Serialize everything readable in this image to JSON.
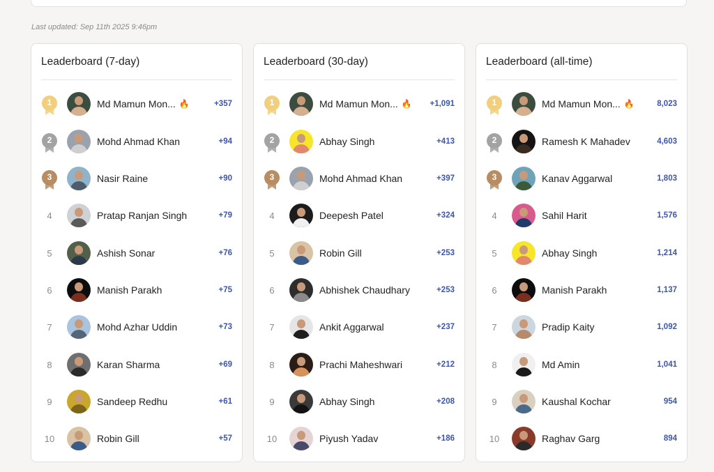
{
  "last_updated": "Last updated: Sep 11th 2025 9:46pm",
  "colors": {
    "score": "#3c55b3",
    "gold": "#f1cf7c",
    "silver": "#a3a3a3",
    "bronze": "#b98c62",
    "fire": "#f05a1a"
  },
  "boards": [
    {
      "title": "Leaderboard (7-day)",
      "rows": [
        {
          "rank": "1",
          "name": "Md Mamun Mon...",
          "fire": "🔥",
          "score": "+357",
          "avatar": [
            "#3b4d3e",
            "#d6b08e"
          ]
        },
        {
          "rank": "2",
          "name": "Mohd Ahmad Khan",
          "fire": "",
          "score": "+94",
          "avatar": [
            "#9aa3ad",
            "#cfcfcf"
          ]
        },
        {
          "rank": "3",
          "name": "Nasir Raine",
          "fire": "",
          "score": "+90",
          "avatar": [
            "#8fb3c9",
            "#4d5d6b"
          ]
        },
        {
          "rank": "4",
          "name": "Pratap Ranjan Singh",
          "fire": "",
          "score": "+79",
          "avatar": [
            "#cfd2d4",
            "#5a5a5a"
          ]
        },
        {
          "rank": "5",
          "name": "Ashish Sonar",
          "fire": "",
          "score": "+76",
          "avatar": [
            "#52604b",
            "#2b3a4a"
          ]
        },
        {
          "rank": "6",
          "name": "Manish Parakh",
          "fire": "",
          "score": "+75",
          "avatar": [
            "#0d0d0d",
            "#7a2e1f"
          ]
        },
        {
          "rank": "7",
          "name": "Mohd Azhar Uddin",
          "fire": "",
          "score": "+73",
          "avatar": [
            "#a9c4de",
            "#55667a"
          ]
        },
        {
          "rank": "8",
          "name": "Karan Sharma",
          "fire": "",
          "score": "+69",
          "avatar": [
            "#6f6f6f",
            "#2a2a2a"
          ]
        },
        {
          "rank": "9",
          "name": "Sandeep Redhu",
          "fire": "",
          "score": "+61",
          "avatar": [
            "#c9a62c",
            "#7d6418"
          ]
        },
        {
          "rank": "10",
          "name": "Robin Gill",
          "fire": "",
          "score": "+57",
          "avatar": [
            "#d8c3a4",
            "#3b5b8a"
          ]
        }
      ]
    },
    {
      "title": "Leaderboard (30-day)",
      "rows": [
        {
          "rank": "1",
          "name": "Md Mamun Mon...",
          "fire": "🔥",
          "score": "+1,091",
          "avatar": [
            "#3b4d3e",
            "#d6b08e"
          ]
        },
        {
          "rank": "2",
          "name": "Abhay Singh",
          "fire": "",
          "score": "+413",
          "avatar": [
            "#f7e52a",
            "#e2896d"
          ]
        },
        {
          "rank": "3",
          "name": "Mohd Ahmad Khan",
          "fire": "",
          "score": "+397",
          "avatar": [
            "#9aa3ad",
            "#cfcfcf"
          ]
        },
        {
          "rank": "4",
          "name": "Deepesh Patel",
          "fire": "",
          "score": "+324",
          "avatar": [
            "#1c1c1c",
            "#f0f0f0"
          ]
        },
        {
          "rank": "5",
          "name": "Robin Gill",
          "fire": "",
          "score": "+253",
          "avatar": [
            "#d8c3a4",
            "#3b5b8a"
          ]
        },
        {
          "rank": "6",
          "name": "Abhishek Chaudhary",
          "fire": "",
          "score": "+253",
          "avatar": [
            "#2d2d2d",
            "#8a8a8a"
          ]
        },
        {
          "rank": "7",
          "name": "Ankit Aggarwal",
          "fire": "",
          "score": "+237",
          "avatar": [
            "#e5e5e5",
            "#1f1f1f"
          ]
        },
        {
          "rank": "8",
          "name": "Prachi Maheshwari",
          "fire": "",
          "score": "+212",
          "avatar": [
            "#2a1c16",
            "#d9915c"
          ]
        },
        {
          "rank": "9",
          "name": "Abhay Singh",
          "fire": "",
          "score": "+208",
          "avatar": [
            "#3a3a3a",
            "#121212"
          ]
        },
        {
          "rank": "10",
          "name": "Piyush Yadav",
          "fire": "",
          "score": "+186",
          "avatar": [
            "#e6d4d4",
            "#4a4a6a"
          ]
        }
      ]
    },
    {
      "title": "Leaderboard (all-time)",
      "rows": [
        {
          "rank": "1",
          "name": "Md Mamun Mon...",
          "fire": "🔥",
          "score": "8,023",
          "avatar": [
            "#3b4d3e",
            "#d6b08e"
          ]
        },
        {
          "rank": "2",
          "name": "Ramesh K Mahadev",
          "fire": "",
          "score": "4,603",
          "avatar": [
            "#141414",
            "#3a2a1f"
          ]
        },
        {
          "rank": "3",
          "name": "Kanav Aggarwal",
          "fire": "",
          "score": "1,803",
          "avatar": [
            "#6fa3b8",
            "#3b5a3a"
          ]
        },
        {
          "rank": "4",
          "name": "Sahil Harit",
          "fire": "",
          "score": "1,576",
          "avatar": [
            "#d95a8c",
            "#1f3b6a"
          ]
        },
        {
          "rank": "5",
          "name": "Abhay Singh",
          "fire": "",
          "score": "1,214",
          "avatar": [
            "#f7e52a",
            "#e2896d"
          ]
        },
        {
          "rank": "6",
          "name": "Manish Parakh",
          "fire": "",
          "score": "1,137",
          "avatar": [
            "#0d0d0d",
            "#7a2e1f"
          ]
        },
        {
          "rank": "7",
          "name": "Pradip Kaity",
          "fire": "",
          "score": "1,092",
          "avatar": [
            "#cbd6de",
            "#b68a6a"
          ]
        },
        {
          "rank": "8",
          "name": "Md Amin",
          "fire": "",
          "score": "1,041",
          "avatar": [
            "#f0f0f0",
            "#1a1a1a"
          ]
        },
        {
          "rank": "9",
          "name": "Kaushal Kochar",
          "fire": "",
          "score": "954",
          "avatar": [
            "#d9d0c0",
            "#4a6a8a"
          ]
        },
        {
          "rank": "10",
          "name": "Raghav Garg",
          "fire": "",
          "score": "894",
          "avatar": [
            "#8a3a2a",
            "#2a2a2a"
          ]
        }
      ]
    }
  ]
}
